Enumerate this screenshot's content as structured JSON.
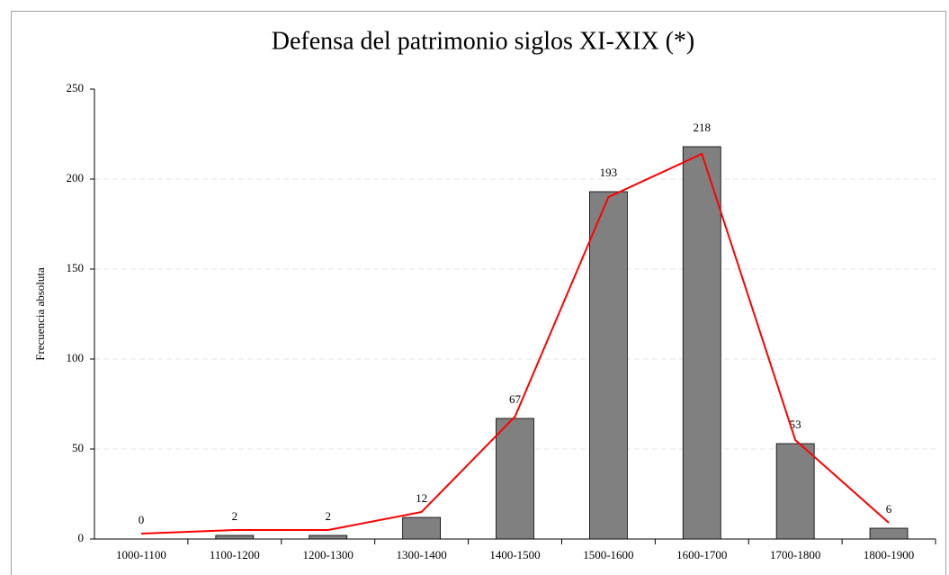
{
  "chart_data": {
    "type": "bar",
    "title": "Defensa del patrimonio siglos XI-XIX (*)",
    "y_label": "Frecuencia absoluta",
    "categories": [
      "1000-1100",
      "1100-1200",
      "1200-1300",
      "1300-1400",
      "1400-1500",
      "1500-1600",
      "1600-1700",
      "1700-1800",
      "1800-1900"
    ],
    "series": [
      {
        "type": "bar",
        "color": "#808080",
        "values": [
          0,
          2,
          2,
          12,
          67,
          193,
          218,
          53,
          6
        ],
        "data_labels": true
      },
      {
        "type": "line",
        "color": "#ff0000",
        "values": [
          3,
          5,
          5,
          15,
          68,
          190,
          214,
          55,
          9
        ]
      }
    ],
    "ylim": [
      0,
      250
    ],
    "yticks": [
      0,
      50,
      100,
      150,
      200,
      250
    ],
    "grid": true
  }
}
